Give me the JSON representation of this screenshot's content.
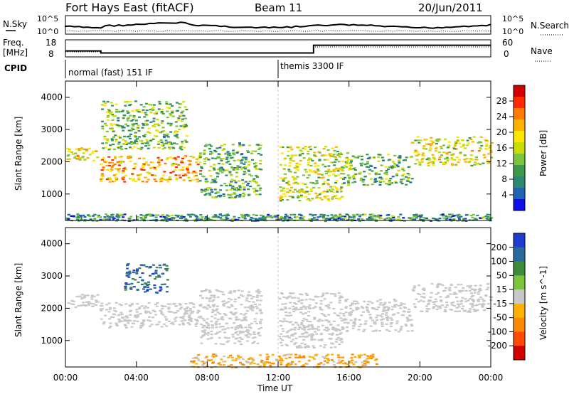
{
  "header": {
    "station": "Fort Hays East (fitACF)",
    "beam": "Beam 11",
    "date": "20/Jun/2011"
  },
  "top_panels": {
    "nsky_label": "N.Sky",
    "nsky_ticks": [
      "10^5",
      "10^0"
    ],
    "nsearch_label": "N.Search",
    "nsearch_ticks": [
      "10^5",
      "10^0"
    ],
    "freq_label_1": "Freq.",
    "freq_label_2": "[MHz]",
    "freq_ticks": [
      "18",
      "8"
    ],
    "nave_label": "Nave",
    "nave_ticks": [
      "60",
      "0"
    ],
    "cpid_label": "CPID",
    "cpid_modes": [
      {
        "name": "normal (fast) 151 IF",
        "start_hour": 0
      },
      {
        "name": "themis 3300 IF",
        "start_hour": 12
      }
    ],
    "frequency_MHz": [
      {
        "start_hour": 0,
        "end_hour": 2,
        "value": 11.5
      },
      {
        "start_hour": 2,
        "end_hour": 14,
        "value": 10.3
      },
      {
        "start_hour": 14,
        "end_hour": 24,
        "value": 14.8
      }
    ]
  },
  "chart_data": [
    {
      "type": "heatmap",
      "title": "",
      "xlabel": "",
      "ylabel": "Slant Range [km]",
      "xlim_hours": [
        0,
        24
      ],
      "ylim": [
        180,
        4500
      ],
      "yticks": [
        1000,
        2000,
        3000,
        4000
      ],
      "colorbar_label": "Power [dB]",
      "colorbar_ticks": [
        "28",
        "24",
        "20",
        "16",
        "12",
        "8",
        "4"
      ],
      "colorbar_colors": [
        "#d20000",
        "#ff2a00",
        "#ff7a00",
        "#ffb000",
        "#ffe600",
        "#c8dc00",
        "#7cc43c",
        "#3c9a4a",
        "#2e8a6e",
        "#1f64b4",
        "#1010e6"
      ],
      "echo_regions": [
        {
          "t0": 0.0,
          "t1": 1.8,
          "r0": 2050,
          "r1": 2450,
          "v": 16
        },
        {
          "t0": 1.9,
          "t1": 7.6,
          "r0": 1400,
          "r1": 2200,
          "v": 20
        },
        {
          "t0": 2.0,
          "t1": 6.8,
          "r0": 2400,
          "r1": 3900,
          "v": 10
        },
        {
          "t0": 7.5,
          "t1": 11.0,
          "r0": 900,
          "r1": 2600,
          "v": 8
        },
        {
          "t0": 12.0,
          "t1": 15.6,
          "r0": 800,
          "r1": 2500,
          "v": 14
        },
        {
          "t0": 15.6,
          "t1": 19.5,
          "r0": 1300,
          "r1": 2300,
          "v": 9
        },
        {
          "t0": 19.5,
          "t1": 24.0,
          "r0": 1900,
          "r1": 2800,
          "v": 15
        },
        {
          "t0": 0.0,
          "t1": 24.0,
          "r0": 180,
          "r1": 400,
          "v": 6
        }
      ]
    },
    {
      "type": "heatmap",
      "title": "",
      "xlabel": "Time UT",
      "ylabel": "Slant Range [km]",
      "xlim_hours": [
        0,
        24
      ],
      "ylim": [
        180,
        4500
      ],
      "yticks": [
        1000,
        2000,
        3000,
        4000
      ],
      "xticks": [
        "00:00",
        "04:00",
        "08:00",
        "12:00",
        "16:00",
        "20:00",
        "00:00"
      ],
      "colorbar_label": "Velocity [m s^-1]",
      "colorbar_ticks": [
        "200",
        "100",
        "50",
        "15",
        "-15",
        "-50",
        "-100",
        "-200"
      ],
      "colorbar_colors": [
        "#1f3cd2",
        "#2a6a9c",
        "#3c8c3c",
        "#7cc43c",
        "#c8c8c8",
        "#ffb000",
        "#ff8a00",
        "#ff4a00",
        "#d20000"
      ],
      "echo_regions": [
        {
          "t0": 0.0,
          "t1": 1.8,
          "r0": 2050,
          "r1": 2450,
          "v": 0
        },
        {
          "t0": 1.9,
          "t1": 7.6,
          "r0": 1400,
          "r1": 2200,
          "v": 0
        },
        {
          "t0": 3.3,
          "t1": 5.7,
          "r0": 2500,
          "r1": 3400,
          "v": 150
        },
        {
          "t0": 7.5,
          "t1": 11.0,
          "r0": 900,
          "r1": 2600,
          "v": 0
        },
        {
          "t0": 12.0,
          "t1": 15.6,
          "r0": 800,
          "r1": 2500,
          "v": 0
        },
        {
          "t0": 15.6,
          "t1": 19.5,
          "r0": 1300,
          "r1": 2300,
          "v": 0
        },
        {
          "t0": 19.5,
          "t1": 24.0,
          "r0": 1900,
          "r1": 2800,
          "v": 0
        },
        {
          "t0": 7.0,
          "t1": 17.5,
          "r0": 180,
          "r1": 600,
          "v": -60
        }
      ]
    }
  ]
}
